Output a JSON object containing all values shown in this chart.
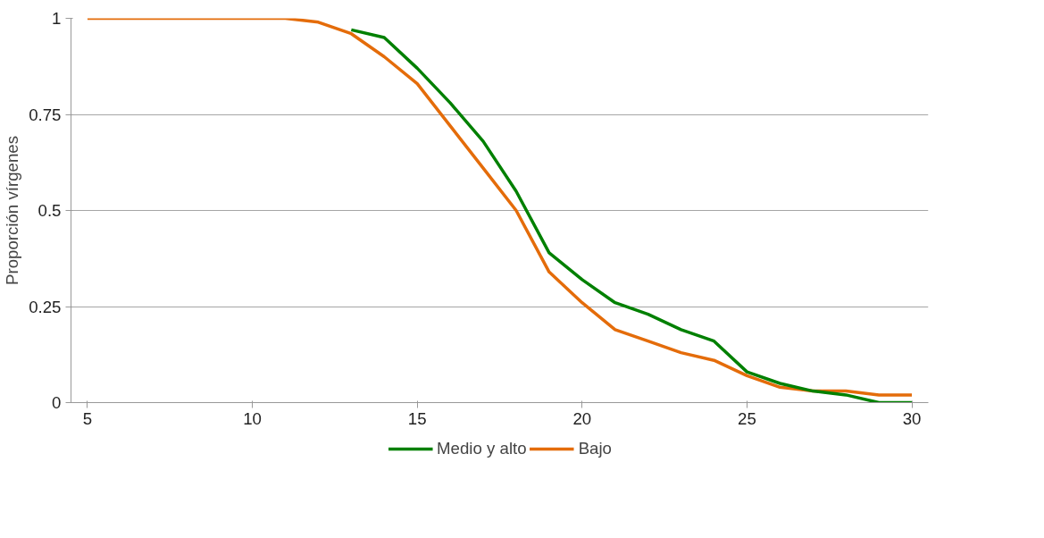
{
  "chart_data": {
    "type": "line",
    "ylabel": "Proporción vírgenes",
    "x": [
      5,
      6,
      7,
      8,
      9,
      10,
      11,
      12,
      13,
      14,
      15,
      16,
      17,
      18,
      19,
      20,
      21,
      22,
      23,
      24,
      25,
      26,
      27,
      28,
      29,
      30
    ],
    "series": [
      {
        "name": "Medio y alto",
        "color": "#008000",
        "values": [
          null,
          null,
          null,
          null,
          null,
          null,
          null,
          null,
          0.97,
          0.95,
          0.87,
          0.78,
          0.68,
          0.55,
          0.39,
          0.32,
          0.26,
          0.23,
          0.19,
          0.16,
          0.08,
          0.05,
          0.03,
          0.02,
          0,
          0
        ]
      },
      {
        "name": "Bajo",
        "color": "#e46c0a",
        "values": [
          1,
          1,
          1,
          1,
          1,
          1,
          1,
          0.99,
          0.96,
          0.9,
          0.83,
          0.72,
          0.61,
          0.5,
          0.34,
          0.26,
          0.19,
          0.16,
          0.13,
          0.11,
          0.07,
          0.04,
          0.03,
          0.03,
          0.02,
          0.02
        ]
      }
    ],
    "xlim": [
      4.5,
      30.5
    ],
    "xticks": [
      5,
      10,
      15,
      20,
      25,
      30
    ],
    "ylim": [
      0,
      1
    ],
    "yticks": [
      0,
      {
        "value": 0.25,
        "label": "0.25"
      },
      {
        "value": 0.5,
        "label": "0.5"
      },
      {
        "value": 0.75,
        "label": "0.75"
      },
      1
    ],
    "grid": "y",
    "legend": "bottom",
    "marker": "none",
    "line_style": "solid"
  }
}
